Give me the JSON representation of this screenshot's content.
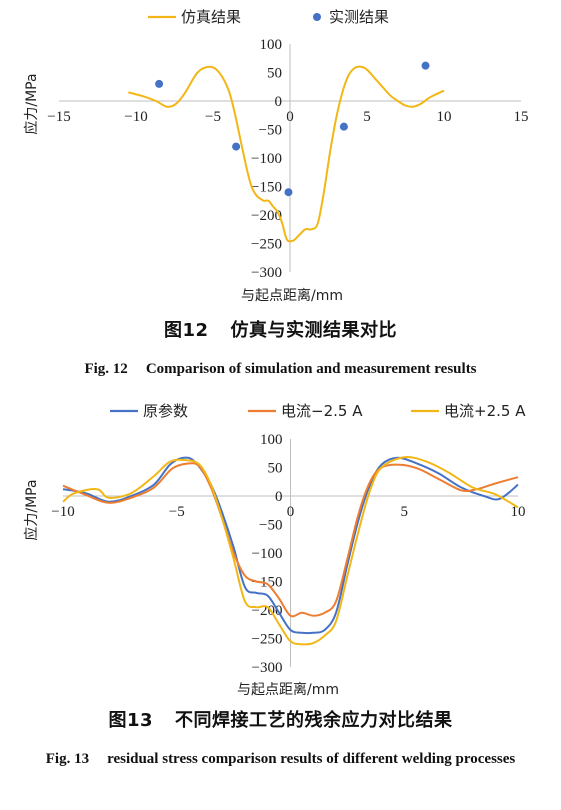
{
  "figures": [
    {
      "caption_cn_number": "图12",
      "caption_cn_text": "仿真与实测结果对比",
      "caption_en_number": "Fig. 12",
      "caption_en_text": "Comparison of simulation and measurement results"
    },
    {
      "caption_cn_number": "图13",
      "caption_cn_text": "不同焊接工艺的残余应力对比结果",
      "caption_en_number": "Fig. 13",
      "caption_en_text": "residual stress comparison results of different welding processes"
    }
  ],
  "chart_data": [
    {
      "type": "line",
      "xlabel": "与起点距离/mm",
      "ylabel": "应力/MPa",
      "xlim": [
        -15,
        15
      ],
      "ylim": [
        -300,
        100
      ],
      "xticks": [
        -15,
        -10,
        -5,
        0,
        5,
        10,
        15
      ],
      "yticks": [
        100,
        50,
        0,
        -50,
        -100,
        -150,
        -200,
        -250,
        -300
      ],
      "grid": false,
      "legend_position": "top",
      "series": [
        {
          "name": "仿真结果",
          "kind": "line",
          "color": "#f2b716",
          "x": [
            -10.5,
            -9.5,
            -8.7,
            -8.0,
            -7.4,
            -6.8,
            -6.0,
            -5.2,
            -4.6,
            -4.0,
            -3.6,
            -3.2,
            -2.8,
            -2.5,
            -2.2,
            -2.0,
            -1.7,
            -1.4,
            -1.1,
            -0.8,
            -0.5,
            -0.2,
            0.2,
            0.6,
            1.0,
            1.4,
            1.8,
            2.2,
            2.6,
            3.0,
            3.4,
            3.8,
            4.2,
            4.6,
            5.0,
            5.5,
            6.0,
            6.5,
            7.0,
            7.5,
            8.0,
            8.5,
            9.0,
            9.5,
            10.0
          ],
          "y": [
            15,
            8,
            0,
            -10,
            -5,
            15,
            50,
            60,
            50,
            20,
            -20,
            -70,
            -120,
            -150,
            -165,
            -170,
            -175,
            -175,
            -185,
            -195,
            -215,
            -243,
            -245,
            -235,
            -225,
            -225,
            -215,
            -160,
            -90,
            -30,
            15,
            45,
            58,
            60,
            55,
            40,
            25,
            10,
            0,
            -8,
            -10,
            -5,
            5,
            12,
            18
          ]
        },
        {
          "name": "实测结果",
          "kind": "scatter",
          "color": "#4472c4",
          "x": [
            -8.5,
            -3.5,
            -0.1,
            3.5,
            8.8
          ],
          "y": [
            30,
            -80,
            -160,
            -45,
            62
          ]
        }
      ]
    },
    {
      "type": "line",
      "xlabel": "与起点距离/mm",
      "ylabel": "应力/MPa",
      "xlim": [
        -10,
        10
      ],
      "ylim": [
        -300,
        100
      ],
      "xticks": [
        -10,
        -5,
        0,
        5,
        10
      ],
      "yticks": [
        100,
        50,
        0,
        -50,
        -100,
        -150,
        -200,
        -250,
        -300
      ],
      "grid": false,
      "legend_position": "top",
      "series": [
        {
          "name": "原参数",
          "color": "#4472c4",
          "x": [
            -10,
            -9,
            -8,
            -7,
            -6,
            -5.3,
            -4.7,
            -4.2,
            -3.5,
            -3,
            -2.5,
            -2,
            -1.5,
            -1,
            -0.5,
            0,
            0.5,
            1,
            1.5,
            2,
            2.5,
            3,
            3.5,
            4,
            4.7,
            5.5,
            6.5,
            7.5,
            8.5,
            9.2,
            10
          ],
          "y": [
            12,
            5,
            -10,
            0,
            20,
            55,
            67,
            60,
            20,
            -30,
            -90,
            -160,
            -170,
            -175,
            -205,
            -235,
            -240,
            -240,
            -235,
            -205,
            -120,
            -40,
            20,
            55,
            67,
            58,
            40,
            15,
            0,
            -5,
            20
          ]
        },
        {
          "name": "电流−2.5 A",
          "color": "#ed7d31",
          "x": [
            -10,
            -9,
            -8,
            -7,
            -6,
            -5.2,
            -4.5,
            -4,
            -3.5,
            -3,
            -2.5,
            -2,
            -1.5,
            -1,
            -0.5,
            0,
            0.5,
            1,
            1.5,
            2,
            2.5,
            3,
            3.5,
            4,
            4.8,
            5.6,
            6.5,
            7.5,
            8.2,
            9,
            10
          ],
          "y": [
            18,
            2,
            -12,
            -3,
            15,
            48,
            57,
            52,
            15,
            -40,
            -100,
            -140,
            -150,
            -155,
            -180,
            -210,
            -205,
            -210,
            -205,
            -185,
            -110,
            -30,
            25,
            50,
            55,
            48,
            30,
            10,
            12,
            22,
            33
          ]
        },
        {
          "name": "电流+2.5 A",
          "color": "#f2b716",
          "x": [
            -10,
            -9.5,
            -8.5,
            -8,
            -7,
            -6,
            -5.3,
            -4.6,
            -4,
            -3.5,
            -3,
            -2.5,
            -2,
            -1.5,
            -1,
            -0.5,
            0,
            0.5,
            1,
            1.5,
            2,
            2.5,
            3,
            3.5,
            4,
            5,
            6,
            7,
            8,
            9,
            10
          ],
          "y": [
            -10,
            5,
            12,
            -3,
            5,
            35,
            60,
            63,
            55,
            20,
            -40,
            -110,
            -185,
            -195,
            -195,
            -225,
            -255,
            -260,
            -258,
            -245,
            -220,
            -140,
            -60,
            10,
            50,
            68,
            60,
            40,
            15,
            3,
            -20
          ]
        }
      ]
    }
  ]
}
